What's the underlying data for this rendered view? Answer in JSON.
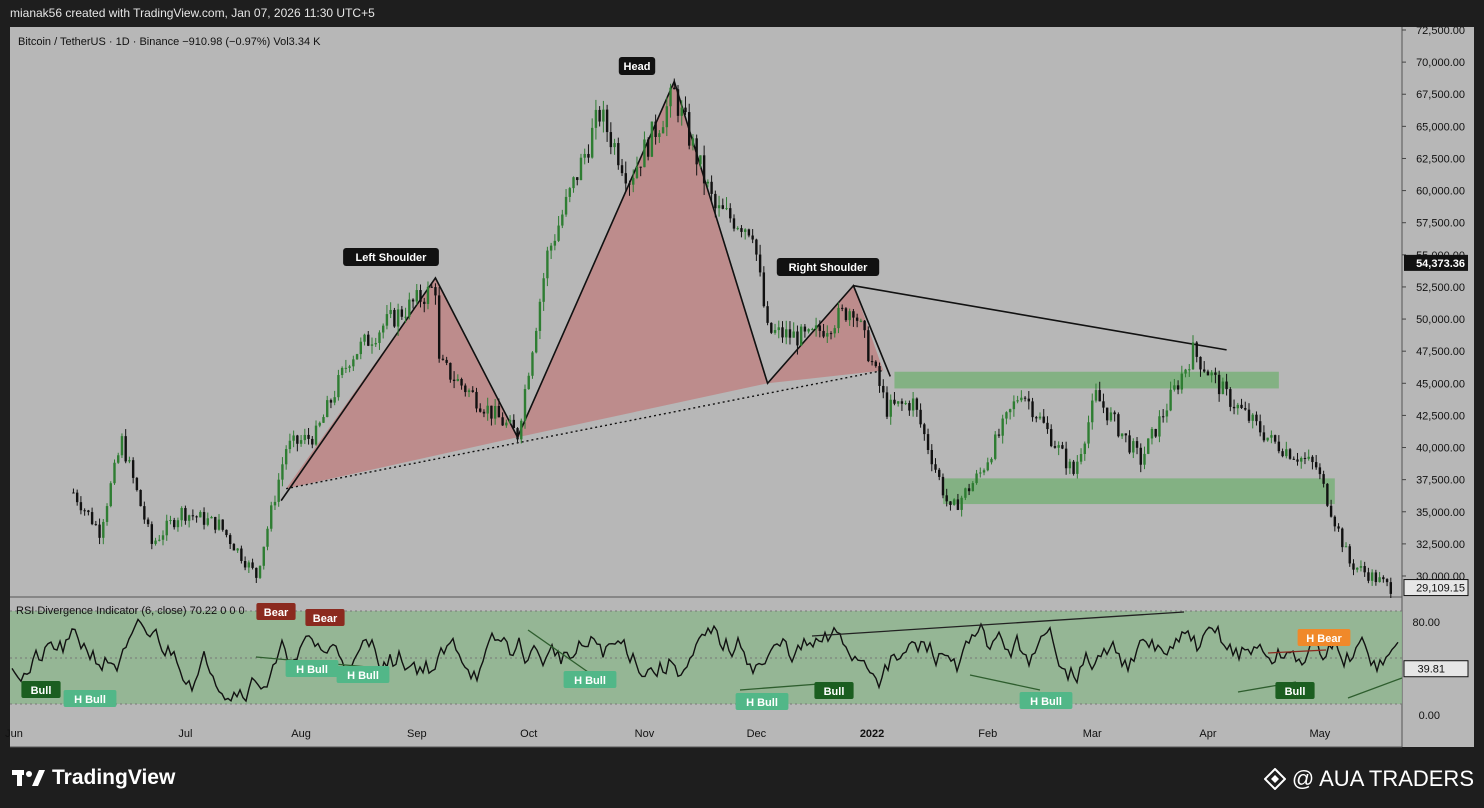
{
  "header": {
    "credit": "mianak56 created with TradingView.com, Jan 07, 2026 11:30 UTC+5"
  },
  "legend": {
    "symbol_line": "Bitcoin / TetherUS · 1D · Binance  −910.98 (−0.97%)  Vol3.34 K",
    "rsi_line": "RSI Divergence Indicator (6, close)  70.22  0  0  0"
  },
  "footer": {
    "brand": "TradingView",
    "watermark": "@ AUA TRADERS"
  },
  "colors": {
    "up_candle": "#2e7d32",
    "down_candle": "#111111",
    "pattern_fill": "#c26a6a",
    "zone_fill": "#7fb07f",
    "bull_label": "#1b5e20",
    "hidden_bull_label": "#52b788",
    "bear_label": "#8b2a1f",
    "hidden_bear_label": "#f0892a",
    "rsi_band": "#8fb68f"
  },
  "chart_data": [
    {
      "type": "candlestick",
      "title": "Bitcoin / TetherUS · 1D · Binance",
      "x_ticks": [
        "Jun",
        "Jul",
        "Aug",
        "Sep",
        "Oct",
        "Nov",
        "Dec",
        "2022",
        "Feb",
        "Mar",
        "Apr",
        "May"
      ],
      "y_ticks": [
        "72,500.00",
        "70,000.00",
        "67,500.00",
        "65,000.00",
        "62,500.00",
        "60,000.00",
        "57,500.00",
        "55,000.00",
        "52,500.00",
        "50,000.00",
        "47,500.00",
        "45,000.00",
        "42,500.00",
        "40,000.00",
        "37,500.00",
        "35,000.00",
        "32,500.00",
        "30,000.00"
      ],
      "ylim": [
        28000,
        73000
      ],
      "price_tags": {
        "marker": "54,373.36",
        "last": "29,109.15"
      },
      "approx_close_path": [
        {
          "date": "2021-06-01",
          "price": 36500
        },
        {
          "date": "2021-06-08",
          "price": 33500
        },
        {
          "date": "2021-06-14",
          "price": 40500
        },
        {
          "date": "2021-06-22",
          "price": 32500
        },
        {
          "date": "2021-06-30",
          "price": 35000
        },
        {
          "date": "2021-07-10",
          "price": 34000
        },
        {
          "date": "2021-07-20",
          "price": 30000
        },
        {
          "date": "2021-07-28",
          "price": 40000
        },
        {
          "date": "2021-08-05",
          "price": 41000
        },
        {
          "date": "2021-08-14",
          "price": 47000
        },
        {
          "date": "2021-08-23",
          "price": 49500
        },
        {
          "date": "2021-09-06",
          "price": 52500
        },
        {
          "date": "2021-09-07",
          "price": 46500
        },
        {
          "date": "2021-09-20",
          "price": 43000
        },
        {
          "date": "2021-09-28",
          "price": 41000
        },
        {
          "date": "2021-10-06",
          "price": 55000
        },
        {
          "date": "2021-10-20",
          "price": 66000
        },
        {
          "date": "2021-10-28",
          "price": 61000
        },
        {
          "date": "2021-11-09",
          "price": 67500
        },
        {
          "date": "2021-11-20",
          "price": 58500
        },
        {
          "date": "2021-11-30",
          "price": 57000
        },
        {
          "date": "2021-12-04",
          "price": 49000
        },
        {
          "date": "2021-12-15",
          "price": 48500
        },
        {
          "date": "2021-12-27",
          "price": 51000
        },
        {
          "date": "2022-01-05",
          "price": 43000
        },
        {
          "date": "2022-01-12",
          "price": 43500
        },
        {
          "date": "2022-01-22",
          "price": 35000
        },
        {
          "date": "2022-01-30",
          "price": 38000
        },
        {
          "date": "2022-02-10",
          "price": 44500
        },
        {
          "date": "2022-02-24",
          "price": 38000
        },
        {
          "date": "2022-03-02",
          "price": 44000
        },
        {
          "date": "2022-03-14",
          "price": 39000
        },
        {
          "date": "2022-03-28",
          "price": 47500
        },
        {
          "date": "2022-04-06",
          "price": 44000
        },
        {
          "date": "2022-04-18",
          "price": 40500
        },
        {
          "date": "2022-04-30",
          "price": 38500
        },
        {
          "date": "2022-05-09",
          "price": 31000
        },
        {
          "date": "2022-05-20",
          "price": 29100
        }
      ],
      "annotations": [
        "Left Shoulder",
        "Head",
        "Right Shoulder"
      ],
      "zones": [
        {
          "name": "resistance-zone",
          "from": "2022-01-07",
          "to": "2022-04-20",
          "low": 44600,
          "high": 45900
        },
        {
          "name": "support-zone",
          "from": "2022-01-20",
          "to": "2022-05-05",
          "low": 35600,
          "high": 37600
        }
      ]
    },
    {
      "type": "line",
      "title": "RSI Divergence Indicator (6, close)",
      "y_ticks": [
        "80.00",
        "0.00"
      ],
      "ylim": [
        0,
        100
      ],
      "value_tag": "39.81",
      "labels": [
        {
          "text": "Bull",
          "kind": "bull"
        },
        {
          "text": "H Bull",
          "kind": "hidden_bull"
        },
        {
          "text": "Bear",
          "kind": "bear"
        },
        {
          "text": "Bear",
          "kind": "bear"
        },
        {
          "text": "H Bull",
          "kind": "hidden_bull"
        },
        {
          "text": "H Bull",
          "kind": "hidden_bull"
        },
        {
          "text": "H Bull",
          "kind": "hidden_bull"
        },
        {
          "text": "H Bull",
          "kind": "hidden_bull"
        },
        {
          "text": "Bull",
          "kind": "bull"
        },
        {
          "text": "H Bull",
          "kind": "hidden_bull"
        },
        {
          "text": "H Bear",
          "kind": "hidden_bear"
        },
        {
          "text": "Bull",
          "kind": "bull"
        }
      ]
    }
  ]
}
